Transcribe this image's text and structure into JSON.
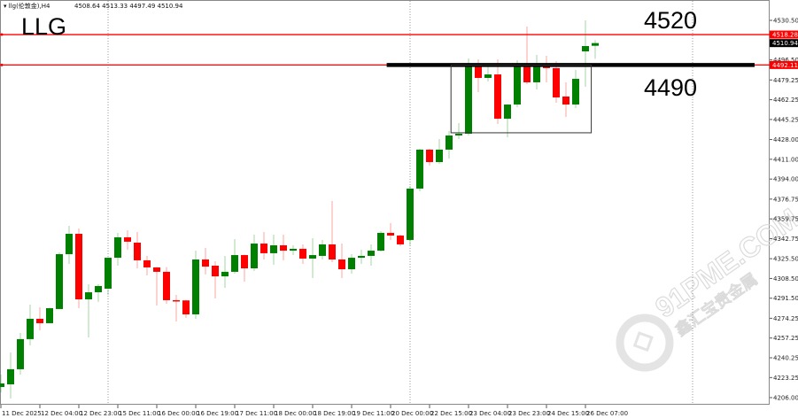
{
  "header": {
    "symbol": "▾ llg(伦敦金),H4",
    "ohlc": "4508.64 4513.33 4497.49 4510.94"
  },
  "annotations": {
    "title": "LLG",
    "upper_label": "4520",
    "lower_label": "4490"
  },
  "watermark": {
    "text": "91PME.COM",
    "subtext": "鑫汇宝贵金属"
  },
  "colors": {
    "bull": "#008000",
    "bear": "#ff0000",
    "hline": "#ff0000",
    "support": "#000000",
    "grid_sep": "#9a9a9a"
  },
  "chart_data": {
    "type": "candlestick",
    "timeframe": "H4",
    "ylim": [
      4206.0,
      4530.5
    ],
    "grid": false,
    "y_ticks": [
      "4530.50",
      "4496.50",
      "4479.25",
      "4462.25",
      "4445.25",
      "4428.00",
      "4411.00",
      "4394.00",
      "4376.75",
      "4359.75",
      "4342.75",
      "4325.50",
      "4308.50",
      "4291.50",
      "4274.25",
      "4257.25",
      "4240.25",
      "4223.25",
      "4206.00"
    ],
    "x_ticks": [
      {
        "bar": 0,
        "label": "11 Dec 2025"
      },
      {
        "bar": 4,
        "label": "12 Dec 04:00"
      },
      {
        "bar": 8,
        "label": "12 Dec 23:00"
      },
      {
        "bar": 12,
        "label": "15 Dec 11:00"
      },
      {
        "bar": 16,
        "label": "16 Dec 00:00"
      },
      {
        "bar": 20,
        "label": "16 Dec 19:00"
      },
      {
        "bar": 24,
        "label": "17 Dec 11:00"
      },
      {
        "bar": 28,
        "label": "18 Dec 00:00"
      },
      {
        "bar": 32,
        "label": "18 Dec 19:00"
      },
      {
        "bar": 36,
        "label": "19 Dec 11:00"
      },
      {
        "bar": 40,
        "label": "20 Dec 00:00"
      },
      {
        "bar": 44,
        "label": "22 Dec 15:00"
      },
      {
        "bar": 48,
        "label": "23 Dec 04:00"
      },
      {
        "bar": 52,
        "label": "23 Dec 23:00"
      },
      {
        "bar": 56,
        "label": "24 Dec 15:00"
      },
      {
        "bar": 60,
        "label": "26 Dec 07:00"
      }
    ],
    "period_separators": [
      11,
      42,
      71
    ],
    "candles": [
      [
        4215.1,
        4225.8,
        4210.5,
        4218.2
      ],
      [
        4217.4,
        4244.8,
        4205.2,
        4230.4
      ],
      [
        4230.4,
        4261.6,
        4225.8,
        4256.3
      ],
      [
        4256.3,
        4286.0,
        4250.9,
        4273.8
      ],
      [
        4273.8,
        4283.7,
        4263.9,
        4270.0
      ],
      [
        4270.0,
        4283.5,
        4270.0,
        4282.9
      ],
      [
        4282.2,
        4330.9,
        4282.0,
        4329.4
      ],
      [
        4329.4,
        4353.8,
        4321.0,
        4346.9
      ],
      [
        4346.9,
        4351.5,
        4282.9,
        4290.5
      ],
      [
        4290.5,
        4303.5,
        4257.8,
        4296.6
      ],
      [
        4296.6,
        4303.5,
        4288.3,
        4302.0
      ],
      [
        4299.7,
        4326.5,
        4294.3,
        4326.3
      ],
      [
        4326.3,
        4347.7,
        4319.5,
        4343.9
      ],
      [
        4343.9,
        4350.0,
        4333.2,
        4340.1
      ],
      [
        4339.3,
        4348.4,
        4317.2,
        4324.1
      ],
      [
        4324.1,
        4327.9,
        4311.1,
        4318.0
      ],
      [
        4318.0,
        4318.3,
        4285.2,
        4314.2
      ],
      [
        4314.2,
        4318.3,
        4286.7,
        4289.8
      ],
      [
        4289.8,
        4294.3,
        4271.5,
        4289.0
      ],
      [
        4289.6,
        4290.0,
        4274.5,
        4277.6
      ],
      [
        4277.6,
        4332.4,
        4273.8,
        4324.8
      ],
      [
        4324.8,
        4334.7,
        4311.9,
        4318.7
      ],
      [
        4319.5,
        4323.3,
        4291.3,
        4310.3
      ],
      [
        4310.3,
        4327.9,
        4300.4,
        4314.2
      ],
      [
        4314.2,
        4342.3,
        4312.6,
        4328.6
      ],
      [
        4328.6,
        4329.0,
        4305.8,
        4317.2
      ],
      [
        4317.2,
        4346.1,
        4314.9,
        4338.5
      ],
      [
        4338.5,
        4348.4,
        4324.8,
        4330.2
      ],
      [
        4330.2,
        4346.1,
        4320.2,
        4337.0
      ],
      [
        4337.0,
        4346.1,
        4324.1,
        4332.4
      ],
      [
        4332.4,
        4337.0,
        4328.6,
        4334.0
      ],
      [
        4334.0,
        4337.8,
        4321.0,
        4325.6
      ],
      [
        4325.6,
        4343.1,
        4308.8,
        4328.6
      ],
      [
        4327.9,
        4341.6,
        4324.8,
        4337.8
      ],
      [
        4337.8,
        4375.1,
        4322.5,
        4324.8
      ],
      [
        4324.8,
        4338.5,
        4308.8,
        4316.4
      ],
      [
        4316.4,
        4329.4,
        4312.6,
        4326.3
      ],
      [
        4326.3,
        4333.2,
        4321.0,
        4327.9
      ],
      [
        4327.9,
        4337.8,
        4319.5,
        4332.4
      ],
      [
        4332.4,
        4349.2,
        4331.7,
        4347.7
      ],
      [
        4347.7,
        4356.1,
        4341.6,
        4345.4
      ],
      [
        4345.4,
        4346.1,
        4336.2,
        4337.8
      ],
      [
        4341.6,
        4388.0,
        4337.0,
        4385.8
      ],
      [
        4385.8,
        4420.0,
        4383.5,
        4419.3
      ],
      [
        4419.3,
        4420.0,
        4405.6,
        4408.6
      ],
      [
        4408.6,
        4428.4,
        4407.1,
        4419.3
      ],
      [
        4419.3,
        4435.3,
        4411.7,
        4431.5
      ],
      [
        4431.5,
        4442.1,
        4428.4,
        4433.0
      ],
      [
        4433.0,
        4497.7,
        4431.5,
        4490.9
      ],
      [
        4490.9,
        4497.0,
        4468.8,
        4481.0
      ],
      [
        4481.0,
        4490.9,
        4477.9,
        4484.0
      ],
      [
        4484.0,
        4497.0,
        4441.4,
        4445.9
      ],
      [
        4445.9,
        4458.5,
        4429.9,
        4458.1
      ],
      [
        4458.1,
        4496.2,
        4455.8,
        4490.9
      ],
      [
        4490.9,
        4525.2,
        4475.7,
        4477.2
      ],
      [
        4477.2,
        4500.8,
        4471.1,
        4490.9
      ],
      [
        4490.9,
        4500.0,
        4477.2,
        4489.4
      ],
      [
        4489.4,
        4495.5,
        4459.7,
        4464.2
      ],
      [
        4465.0,
        4477.2,
        4447.5,
        4458.1
      ],
      [
        4458.1,
        4487.8,
        4455.1,
        4480.2
      ],
      [
        4503.8,
        4530.5,
        4473.4,
        4508.4
      ],
      [
        4508.64,
        4513.33,
        4497.49,
        4510.94
      ]
    ],
    "candle_format": [
      "open",
      "high",
      "low",
      "close"
    ],
    "hlines": [
      {
        "price": 4518.28,
        "label": "4518.28",
        "color": "#ff0000"
      },
      {
        "price": 4492.11,
        "label": "4492.11",
        "color": "#ff0000"
      }
    ],
    "support_line": {
      "price": 4492.11,
      "from_bar": 39.6
    },
    "range_box": {
      "from_bar": 46.2,
      "to_bar": 60.6,
      "top": 4492.11,
      "bottom": 4433.8
    },
    "last_price": {
      "price": 4510.94,
      "label": "4510.94"
    }
  }
}
